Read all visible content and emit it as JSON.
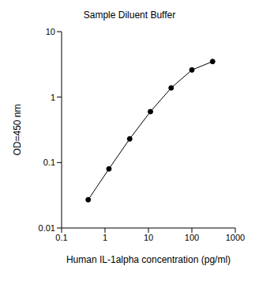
{
  "chart_data": {
    "type": "line",
    "title": "Sample Diluent Buffer",
    "x_label": "Human IL-1alpha concentration (pg/ml)",
    "y_label": "OD=450 nm",
    "x": [
      0.41,
      1.23,
      3.7,
      11.1,
      33.3,
      100,
      300
    ],
    "values": [
      0.027,
      0.08,
      0.23,
      0.6,
      1.38,
      2.6,
      3.5
    ],
    "xlim": [
      0.1,
      1000
    ],
    "ylim": [
      0.01,
      10
    ],
    "xticks": [
      0.1,
      1,
      10,
      100,
      1000
    ],
    "yticks": [
      0.01,
      0.1,
      1,
      10
    ],
    "log": true,
    "grid": false,
    "color": "#000000",
    "marker": "circle"
  }
}
